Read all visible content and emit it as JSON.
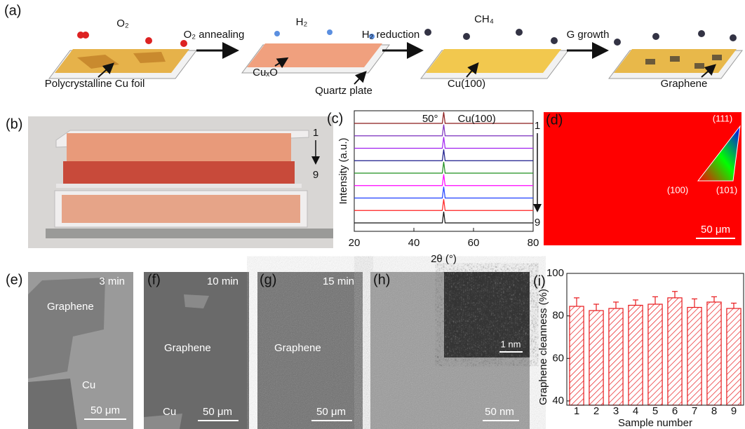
{
  "panel_a": {
    "label": "(a)",
    "gases": [
      "O₂",
      "H₂",
      "CH₄"
    ],
    "steps": [
      "O₂ annealing",
      "H₂ reduction",
      "G growth"
    ],
    "captions": [
      "Polycrystalline Cu foil",
      "CuₓO",
      "Quartz plate",
      "Cu(100)",
      "Graphene"
    ]
  },
  "panel_b": {
    "label": "(b)",
    "stack_top": "1",
    "stack_bottom": "9"
  },
  "panel_d": {
    "label": "(d)",
    "poles": [
      "(111)",
      "(100)",
      "(101)"
    ],
    "scale_bar": "50 μm"
  },
  "panel_e": {
    "label": "(e)",
    "time": "3 min",
    "labels": [
      "Graphene",
      "Cu"
    ],
    "scale_bar": "50 μm"
  },
  "panel_f": {
    "label": "(f)",
    "time": "10 min",
    "labels": [
      "Graphene",
      "Cu"
    ],
    "scale_bar": "50 μm"
  },
  "panel_g": {
    "label": "(g)",
    "time": "15 min",
    "labels": [
      "Graphene"
    ],
    "scale_bar": "50 μm"
  },
  "panel_h": {
    "label": "(h)",
    "inset_scale_bar": "1 nm",
    "scale_bar": "50 nm"
  },
  "chart_data": [
    {
      "type": "line",
      "panel_label": "(c)",
      "xlabel": "2θ (°)",
      "ylabel": "Intensity (a.u.)",
      "xlim": [
        20,
        80
      ],
      "xticks": [
        20,
        40,
        60,
        80
      ],
      "peak": {
        "value": 50,
        "label": "50°"
      },
      "annotation": "Cu(100)",
      "sample_first": "1",
      "sample_last": "9",
      "trace_colors": [
        "#8b1a1a",
        "#7b2fbf",
        "#a020f0",
        "#1a1a8b",
        "#1f8f1f",
        "#ff00ff",
        "#1f3fff",
        "#ff2020",
        "#111111"
      ]
    },
    {
      "type": "bar",
      "panel_label": "(i)",
      "xlabel": "Sample number",
      "ylabel": "Graphene cleanness (%)",
      "categories": [
        "1",
        "2",
        "3",
        "4",
        "5",
        "6",
        "7",
        "8",
        "9"
      ],
      "values": [
        84.5,
        82.5,
        83.5,
        85,
        85.5,
        88.5,
        84,
        86.5,
        83.5
      ],
      "errors": [
        4,
        3,
        3,
        2.5,
        3.5,
        3,
        4,
        2.5,
        2.5
      ],
      "color": "#e8191c",
      "ylim": [
        38,
        100
      ],
      "yticks": [
        40,
        60,
        80,
        100
      ]
    }
  ]
}
